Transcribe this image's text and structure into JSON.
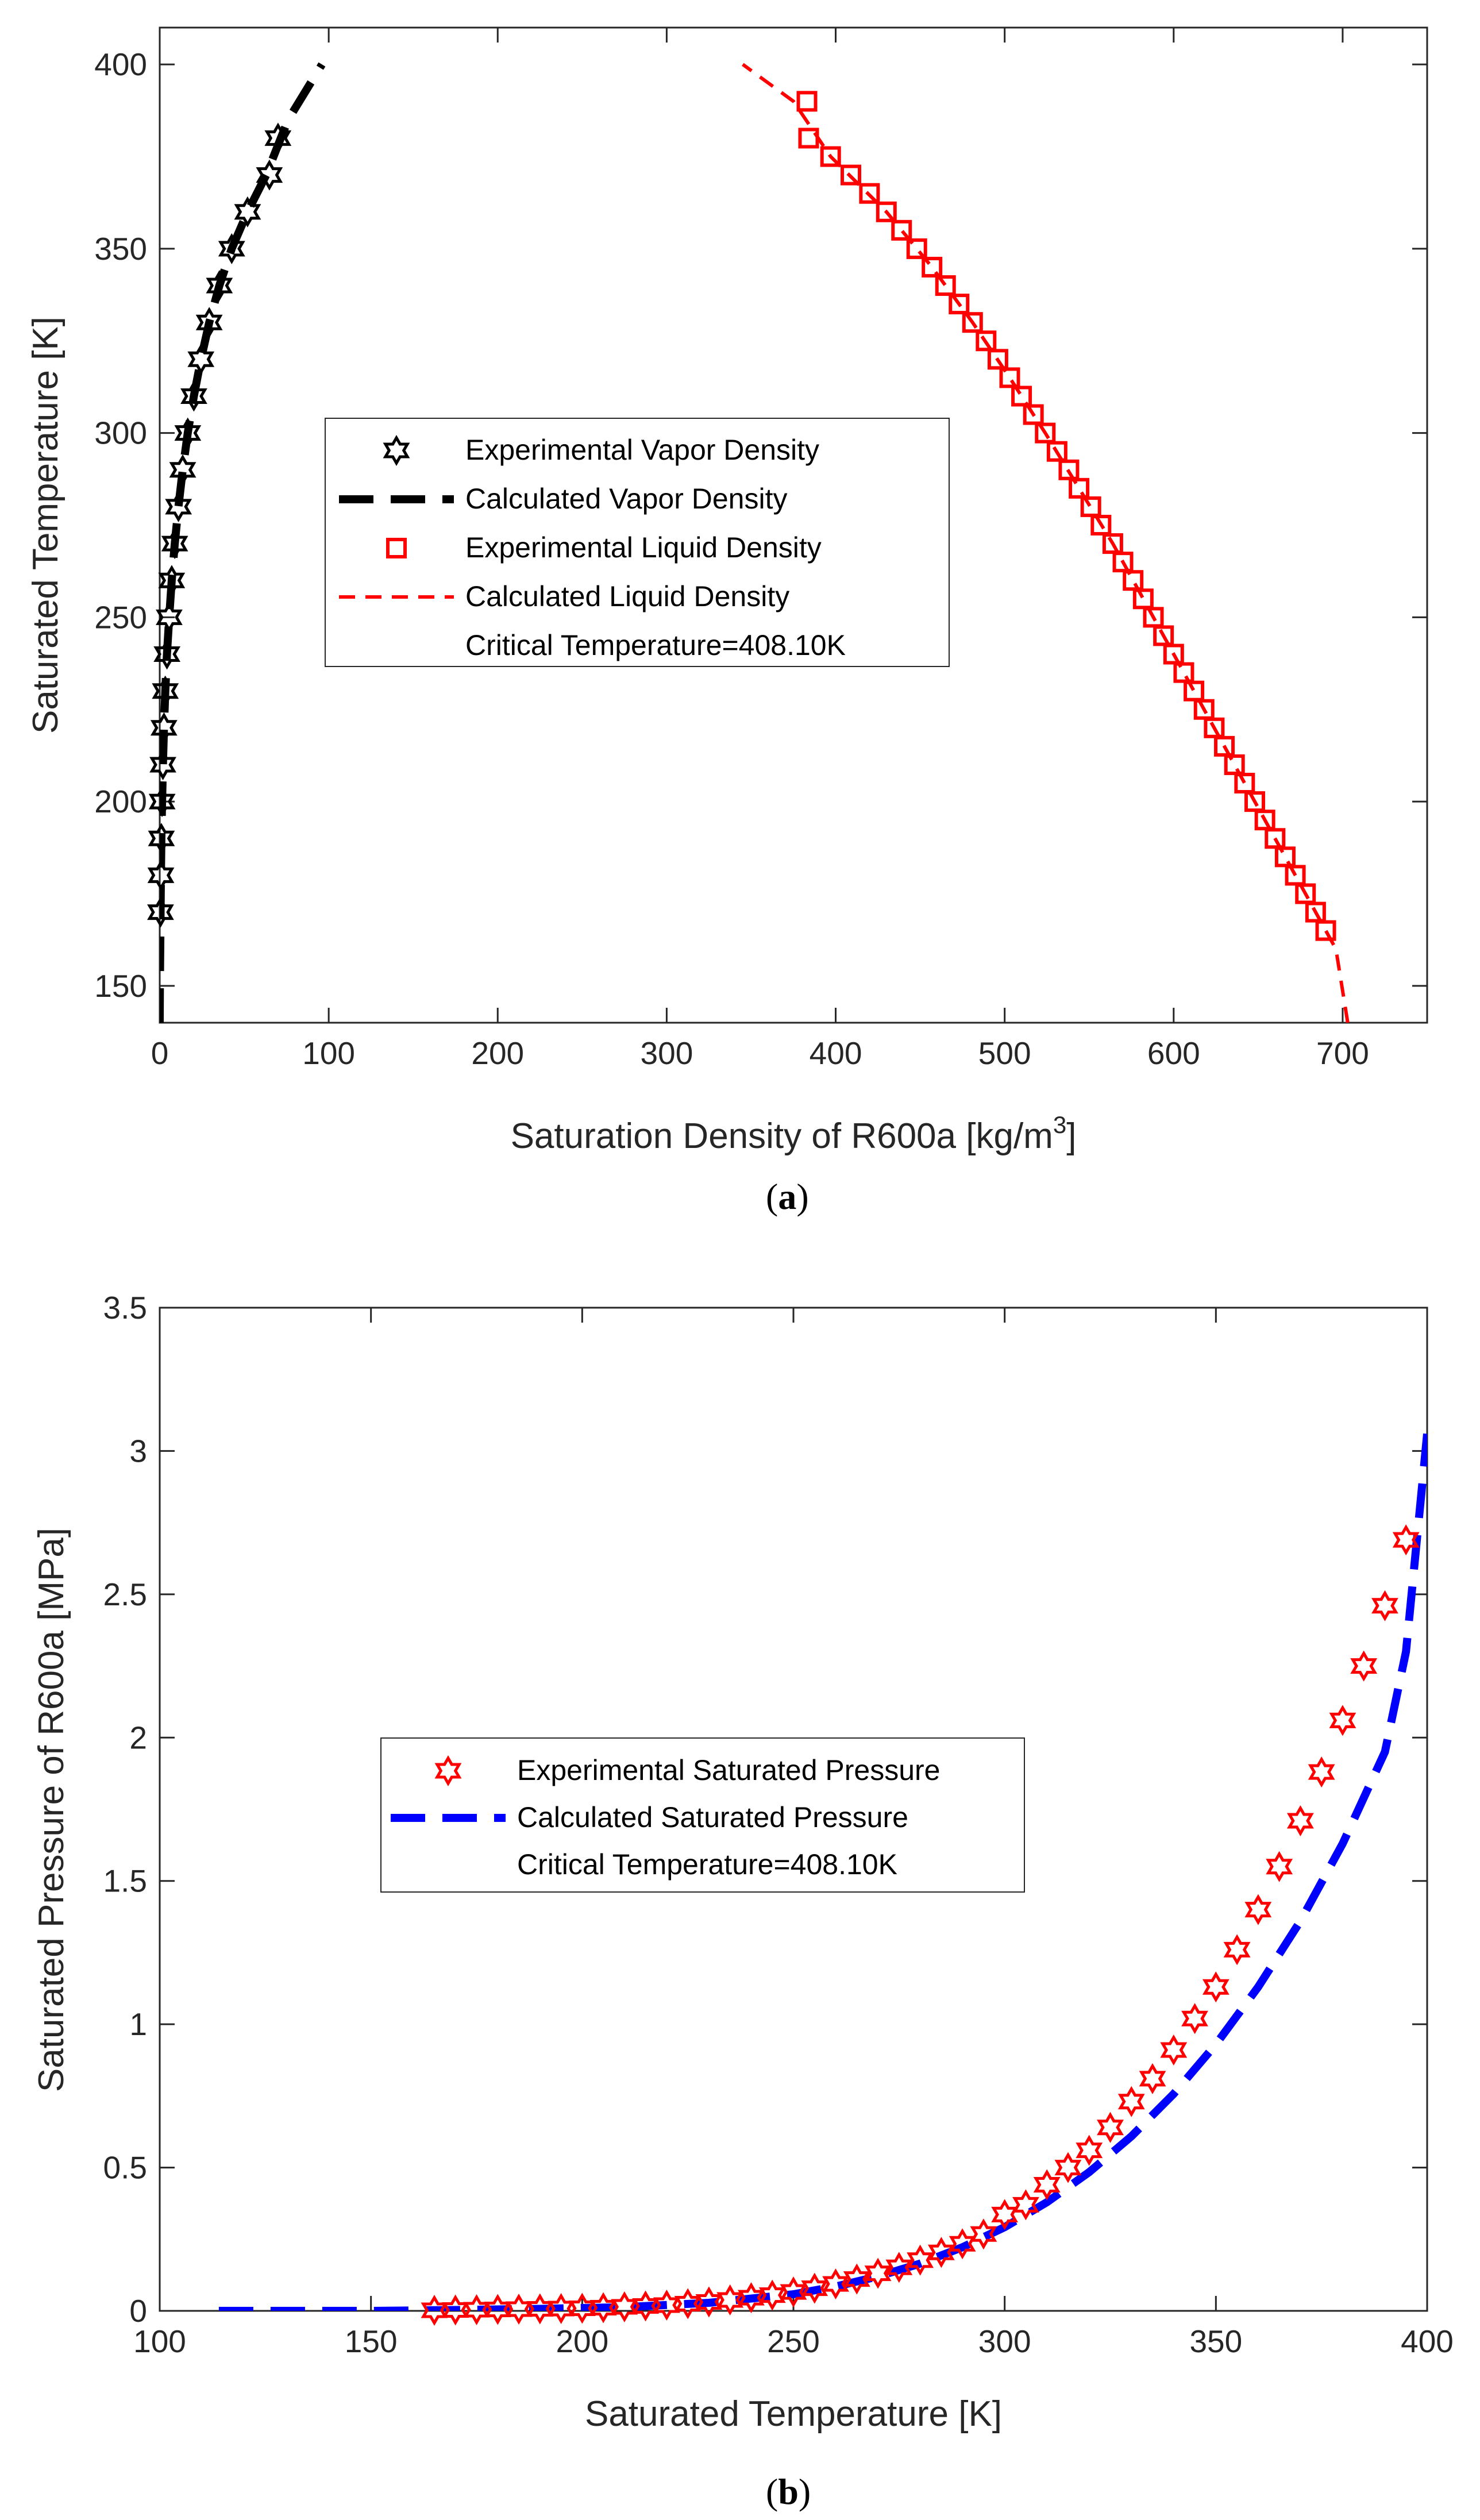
{
  "chart_data": [
    {
      "type": "line",
      "panel_label": "a",
      "xlabel": "Saturation Density of R600a [kg/m",
      "xlabel_sup": "3",
      "xlabel_end": "]",
      "ylabel": "Saturated Temperature [K]",
      "xlim": [
        0,
        750
      ],
      "ylim": [
        140,
        410
      ],
      "xticks": [
        0,
        100,
        200,
        300,
        400,
        500,
        600,
        700
      ],
      "yticks": [
        150,
        200,
        250,
        300,
        350,
        400
      ],
      "legend_position": "center-left",
      "series": [
        {
          "name": "Experimental Vapor Density",
          "kind": "markers",
          "marker": "hexagram",
          "color": "#000000",
          "points": [
            [
              0.5,
              170
            ],
            [
              0.7,
              180
            ],
            [
              1.0,
              190
            ],
            [
              1.4,
              200
            ],
            [
              1.9,
              210
            ],
            [
              2.5,
              220
            ],
            [
              3.3,
              230
            ],
            [
              4.3,
              240
            ],
            [
              5.6,
              250
            ],
            [
              7.1,
              260
            ],
            [
              8.9,
              270
            ],
            [
              11.1,
              280
            ],
            [
              13.6,
              290
            ],
            [
              16.6,
              300
            ],
            [
              20.2,
              310
            ],
            [
              24.4,
              320
            ],
            [
              29.3,
              330
            ],
            [
              35.3,
              340
            ],
            [
              42.6,
              350
            ],
            [
              52.0,
              360
            ],
            [
              64.9,
              370
            ],
            [
              70.0,
              380
            ]
          ]
        },
        {
          "name": "Calculated Vapor Density",
          "kind": "line",
          "style": "dashed-thick",
          "color": "#000000",
          "points": [
            [
              0.0,
              140
            ],
            [
              0.1,
              150
            ],
            [
              0.3,
              160
            ],
            [
              0.5,
              170
            ],
            [
              0.7,
              180
            ],
            [
              1.0,
              190
            ],
            [
              1.4,
              200
            ],
            [
              1.9,
              210
            ],
            [
              2.5,
              220
            ],
            [
              3.3,
              230
            ],
            [
              4.3,
              240
            ],
            [
              5.6,
              250
            ],
            [
              7.1,
              260
            ],
            [
              8.9,
              270
            ],
            [
              11.1,
              280
            ],
            [
              13.6,
              290
            ],
            [
              16.6,
              300
            ],
            [
              20.2,
              310
            ],
            [
              24.4,
              320
            ],
            [
              29.3,
              330
            ],
            [
              35.3,
              340
            ],
            [
              42.6,
              350
            ],
            [
              52.0,
              360
            ],
            [
              63.0,
              370
            ],
            [
              76.0,
              385
            ],
            [
              96.0,
              400
            ]
          ]
        },
        {
          "name": "Experimental Liquid Density",
          "kind": "markers",
          "marker": "square",
          "color": "#ff0000",
          "points": [
            [
              690,
              165
            ],
            [
              684,
              170
            ],
            [
              678,
              175
            ],
            [
              672,
              180
            ],
            [
              666,
              185
            ],
            [
              660,
              190
            ],
            [
              654,
              195
            ],
            [
              648,
              200
            ],
            [
              642,
              205
            ],
            [
              636,
              210
            ],
            [
              630,
              215
            ],
            [
              624,
              220
            ],
            [
              618,
              225
            ],
            [
              612,
              230
            ],
            [
              606,
              235
            ],
            [
              600,
              240
            ],
            [
              594,
              245
            ],
            [
              588,
              250
            ],
            [
              582,
              255
            ],
            [
              576,
              260
            ],
            [
              570,
              265
            ],
            [
              564,
              270
            ],
            [
              557,
              275
            ],
            [
              551,
              280
            ],
            [
              544,
              285
            ],
            [
              538,
              290
            ],
            [
              531,
              295
            ],
            [
              524,
              300
            ],
            [
              517,
              305
            ],
            [
              510,
              310
            ],
            [
              503,
              315
            ],
            [
              496,
              320
            ],
            [
              489,
              325
            ],
            [
              481,
              330
            ],
            [
              473,
              335
            ],
            [
              465,
              340
            ],
            [
              457,
              345
            ],
            [
              448,
              350
            ],
            [
              439,
              355
            ],
            [
              430,
              360
            ],
            [
              420,
              365
            ],
            [
              409,
              370
            ],
            [
              397,
              375
            ],
            [
              384,
              380
            ],
            [
              383,
              390
            ]
          ]
        },
        {
          "name": "Calculated Liquid Density",
          "kind": "line",
          "style": "dashed",
          "color": "#ff0000",
          "points": [
            [
              703,
              140
            ],
            [
              696,
              160
            ],
            [
              690,
              165
            ],
            [
              672,
              180
            ],
            [
              654,
              195
            ],
            [
              636,
              210
            ],
            [
              618,
              225
            ],
            [
              600,
              240
            ],
            [
              582,
              255
            ],
            [
              564,
              270
            ],
            [
              544,
              285
            ],
            [
              524,
              300
            ],
            [
              503,
              315
            ],
            [
              481,
              330
            ],
            [
              457,
              345
            ],
            [
              430,
              360
            ],
            [
              397,
              375
            ],
            [
              375,
              390
            ],
            [
              345,
              400
            ]
          ]
        }
      ],
      "legend_entries": [
        "Experimental Vapor Density",
        "Calculated Vapor Density",
        "Experimental Liquid Density",
        "Calculated Liquid Density",
        "Critical Temperature=408.10K"
      ]
    },
    {
      "type": "line",
      "panel_label": "b",
      "xlabel": "Saturated Temperature [K]",
      "ylabel": "Saturated Pressure of R600a [MPa]",
      "xlim": [
        100,
        400
      ],
      "ylim": [
        0,
        3.5
      ],
      "xticks": [
        100,
        150,
        200,
        250,
        300,
        350,
        400
      ],
      "yticks": [
        0,
        0.5,
        1,
        1.5,
        2,
        2.5,
        3,
        3.5
      ],
      "legend_position": "center-left",
      "series": [
        {
          "name": "Experimental Saturated Pressure",
          "kind": "markers",
          "marker": "hexagram",
          "color": "#ff0000",
          "points": [
            [
              165,
              0.002
            ],
            [
              170,
              0.003
            ],
            [
              175,
              0.004
            ],
            [
              180,
              0.005
            ],
            [
              185,
              0.006
            ],
            [
              190,
              0.007
            ],
            [
              195,
              0.008
            ],
            [
              200,
              0.009
            ],
            [
              205,
              0.011
            ],
            [
              210,
              0.014
            ],
            [
              215,
              0.017
            ],
            [
              220,
              0.02
            ],
            [
              225,
              0.025
            ],
            [
              230,
              0.031
            ],
            [
              235,
              0.038
            ],
            [
              240,
              0.046
            ],
            [
              245,
              0.055
            ],
            [
              250,
              0.066
            ],
            [
              255,
              0.079
            ],
            [
              260,
              0.094
            ],
            [
              265,
              0.111
            ],
            [
              270,
              0.131
            ],
            [
              275,
              0.152
            ],
            [
              280,
              0.177
            ],
            [
              285,
              0.204
            ],
            [
              290,
              0.234
            ],
            [
              295,
              0.268
            ],
            [
              300,
              0.336
            ],
            [
              305,
              0.37
            ],
            [
              310,
              0.44
            ],
            [
              315,
              0.5
            ],
            [
              320,
              0.56
            ],
            [
              325,
              0.64
            ],
            [
              330,
              0.73
            ],
            [
              335,
              0.81
            ],
            [
              340,
              0.91
            ],
            [
              345,
              1.02
            ],
            [
              350,
              1.13
            ],
            [
              355,
              1.26
            ],
            [
              360,
              1.4
            ],
            [
              365,
              1.55
            ],
            [
              370,
              1.71
            ],
            [
              375,
              1.88
            ],
            [
              380,
              2.06
            ],
            [
              385,
              2.25
            ],
            [
              390,
              2.46
            ],
            [
              395,
              2.69
            ]
          ]
        },
        {
          "name": "Calculated Saturated Pressure",
          "kind": "line",
          "style": "dashed-thick",
          "color": "#0000ff",
          "points": [
            [
              114,
              0.0
            ],
            [
              150,
              0.0
            ],
            [
              170,
              0.003
            ],
            [
              190,
              0.007
            ],
            [
              210,
              0.013
            ],
            [
              230,
              0.028
            ],
            [
              250,
              0.058
            ],
            [
              260,
              0.085
            ],
            [
              270,
              0.12
            ],
            [
              280,
              0.165
            ],
            [
              290,
              0.222
            ],
            [
              300,
              0.292
            ],
            [
              310,
              0.379
            ],
            [
              320,
              0.484
            ],
            [
              330,
              0.609
            ],
            [
              340,
              0.757
            ],
            [
              350,
              0.93
            ],
            [
              360,
              1.13
            ],
            [
              370,
              1.36
            ],
            [
              380,
              1.63
            ],
            [
              390,
              1.95
            ],
            [
              395,
              2.3
            ],
            [
              400,
              3.06
            ]
          ]
        }
      ],
      "legend_entries": [
        "Experimental Saturated Pressure",
        "Calculated Saturated Pressure",
        "Critical Temperature=408.10K"
      ]
    }
  ]
}
